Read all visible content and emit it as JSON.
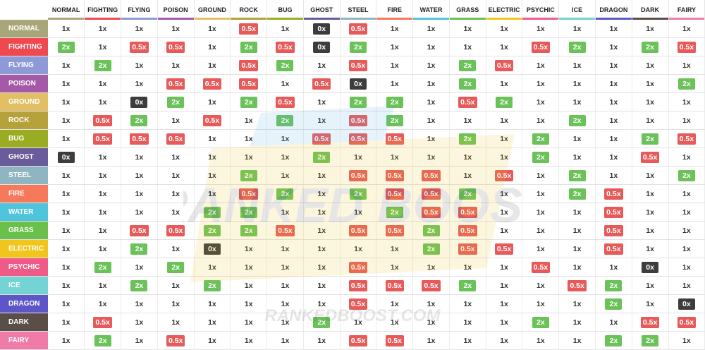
{
  "chart_data": {
    "type": "table",
    "columns": [
      "NORMAL",
      "FIGHTING",
      "FLYING",
      "POISON",
      "GROUND",
      "ROCK",
      "BUG",
      "GHOST",
      "STEEL",
      "FIRE",
      "WATER",
      "GRASS",
      "ELECTRIC",
      "PSYCHIC",
      "ICE",
      "DRAGON",
      "DARK",
      "FAIRY"
    ],
    "rows": [
      {
        "label": "NORMAL",
        "values": [
          "1x",
          "1x",
          "1x",
          "1x",
          "1x",
          "0.5x",
          "1x",
          "0x",
          "0.5x",
          "1x",
          "1x",
          "1x",
          "1x",
          "1x",
          "1x",
          "1x",
          "1x",
          "1x"
        ]
      },
      {
        "label": "FIGHTING",
        "values": [
          "2x",
          "1x",
          "0.5x",
          "0.5x",
          "1x",
          "2x",
          "0.5x",
          "0x",
          "2x",
          "1x",
          "1x",
          "1x",
          "1x",
          "0.5x",
          "2x",
          "1x",
          "2x",
          "0.5x"
        ]
      },
      {
        "label": "FLYING",
        "values": [
          "1x",
          "2x",
          "1x",
          "1x",
          "1x",
          "0.5x",
          "2x",
          "1x",
          "0.5x",
          "1x",
          "1x",
          "2x",
          "0.5x",
          "1x",
          "1x",
          "1x",
          "1x",
          "1x"
        ]
      },
      {
        "label": "POISON",
        "values": [
          "1x",
          "1x",
          "1x",
          "0.5x",
          "0.5x",
          "0.5x",
          "1x",
          "0.5x",
          "0x",
          "1x",
          "1x",
          "2x",
          "1x",
          "1x",
          "1x",
          "1x",
          "1x",
          "2x"
        ]
      },
      {
        "label": "GROUND",
        "values": [
          "1x",
          "1x",
          "0x",
          "2x",
          "1x",
          "2x",
          "0.5x",
          "1x",
          "2x",
          "2x",
          "1x",
          "0.5x",
          "2x",
          "1x",
          "1x",
          "1x",
          "1x",
          "1x"
        ]
      },
      {
        "label": "ROCK",
        "values": [
          "1x",
          "0.5x",
          "2x",
          "1x",
          "0.5x",
          "1x",
          "2x",
          "1x",
          "0.5x",
          "2x",
          "1x",
          "1x",
          "1x",
          "1x",
          "2x",
          "1x",
          "1x",
          "1x"
        ]
      },
      {
        "label": "BUG",
        "values": [
          "1x",
          "0.5x",
          "0.5x",
          "0.5x",
          "1x",
          "1x",
          "1x",
          "0.5x",
          "0.5x",
          "0.5x",
          "1x",
          "2x",
          "1x",
          "2x",
          "1x",
          "1x",
          "2x",
          "0.5x"
        ]
      },
      {
        "label": "GHOST",
        "values": [
          "0x",
          "1x",
          "1x",
          "1x",
          "1x",
          "1x",
          "1x",
          "2x",
          "1x",
          "1x",
          "1x",
          "1x",
          "1x",
          "2x",
          "1x",
          "1x",
          "0.5x",
          "1x"
        ]
      },
      {
        "label": "STEEL",
        "values": [
          "1x",
          "1x",
          "1x",
          "1x",
          "1x",
          "2x",
          "1x",
          "1x",
          "0.5x",
          "0.5x",
          "0.5x",
          "1x",
          "0.5x",
          "1x",
          "2x",
          "1x",
          "1x",
          "2x"
        ]
      },
      {
        "label": "FIRE",
        "values": [
          "1x",
          "1x",
          "1x",
          "1x",
          "1x",
          "0.5x",
          "2x",
          "1x",
          "2x",
          "0.5x",
          "0.5x",
          "2x",
          "1x",
          "1x",
          "2x",
          "0.5x",
          "1x",
          "1x"
        ]
      },
      {
        "label": "WATER",
        "values": [
          "1x",
          "1x",
          "1x",
          "1x",
          "2x",
          "2x",
          "1x",
          "1x",
          "1x",
          "2x",
          "0.5x",
          "0.5x",
          "1x",
          "1x",
          "1x",
          "0.5x",
          "1x",
          "1x"
        ]
      },
      {
        "label": "GRASS",
        "values": [
          "1x",
          "1x",
          "0.5x",
          "0.5x",
          "2x",
          "2x",
          "0.5x",
          "1x",
          "0.5x",
          "0.5x",
          "2x",
          "0.5x",
          "1x",
          "1x",
          "1x",
          "0.5x",
          "1x",
          "1x"
        ]
      },
      {
        "label": "ELECTRIC",
        "values": [
          "1x",
          "1x",
          "2x",
          "1x",
          "0x",
          "1x",
          "1x",
          "1x",
          "1x",
          "1x",
          "2x",
          "0.5x",
          "0.5x",
          "1x",
          "1x",
          "0.5x",
          "1x",
          "1x"
        ]
      },
      {
        "label": "PSYCHIC",
        "values": [
          "1x",
          "2x",
          "1x",
          "2x",
          "1x",
          "1x",
          "1x",
          "1x",
          "0.5x",
          "1x",
          "1x",
          "1x",
          "1x",
          "0.5x",
          "1x",
          "1x",
          "0x",
          "1x"
        ]
      },
      {
        "label": "ICE",
        "values": [
          "1x",
          "1x",
          "2x",
          "1x",
          "2x",
          "1x",
          "1x",
          "1x",
          "0.5x",
          "0.5x",
          "0.5x",
          "2x",
          "1x",
          "1x",
          "0.5x",
          "2x",
          "1x",
          "1x"
        ]
      },
      {
        "label": "DRAGON",
        "values": [
          "1x",
          "1x",
          "1x",
          "1x",
          "1x",
          "1x",
          "1x",
          "1x",
          "0.5x",
          "1x",
          "1x",
          "1x",
          "1x",
          "1x",
          "1x",
          "2x",
          "1x",
          "0x"
        ]
      },
      {
        "label": "DARK",
        "values": [
          "1x",
          "0.5x",
          "1x",
          "1x",
          "1x",
          "1x",
          "1x",
          "2x",
          "1x",
          "1x",
          "1x",
          "1x",
          "1x",
          "2x",
          "1x",
          "1x",
          "0.5x",
          "0.5x"
        ]
      },
      {
        "label": "FAIRY",
        "values": [
          "1x",
          "2x",
          "1x",
          "0.5x",
          "1x",
          "1x",
          "1x",
          "1x",
          "0.5x",
          "0.5x",
          "1x",
          "1x",
          "1x",
          "1x",
          "1x",
          "2x",
          "2x",
          "1x"
        ]
      }
    ]
  },
  "type_colors": {
    "NORMAL": "#a8a77a",
    "FIGHTING": "#f0484f",
    "FLYING": "#8e9ad8",
    "POISON": "#a55aa8",
    "GROUND": "#e2bf65",
    "ROCK": "#b6a13a",
    "BUG": "#9aad22",
    "GHOST": "#6a5b9a",
    "STEEL": "#8fb4c2",
    "FIRE": "#f5795a",
    "WATER": "#4ec5dd",
    "GRASS": "#6bc04b",
    "ELECTRIC": "#f2c51c",
    "PSYCHIC": "#f05a89",
    "ICE": "#74d3d3",
    "DRAGON": "#5d56c8",
    "DARK": "#5a4e48",
    "FAIRY": "#f07aa8"
  },
  "effect_colors": {
    "good": "#6ac259",
    "bad": "#e85a5a",
    "none": "#3d3d3d"
  },
  "watermark": {
    "logo_text": "RANKED BOOST",
    "url_text": "RANKEDBOOST.COM"
  }
}
